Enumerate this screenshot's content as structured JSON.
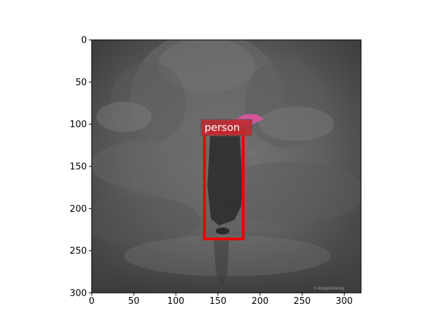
{
  "chart_data": {
    "type": "image-detection",
    "xlim": [
      0,
      320
    ],
    "ylim": [
      300,
      0
    ],
    "x_ticks": [
      0,
      50,
      100,
      150,
      200,
      250,
      300
    ],
    "y_ticks": [
      0,
      50,
      100,
      150,
      200,
      250,
      300
    ],
    "x_tick_labels": [
      "0",
      "50",
      "100",
      "150",
      "200",
      "250",
      "300"
    ],
    "y_tick_labels": [
      "0",
      "50",
      "100",
      "150",
      "200",
      "250",
      "300"
    ],
    "grid": false,
    "detections": [
      {
        "label": "person",
        "box": {
          "x_min": 134,
          "y_min": 109,
          "x_max": 180,
          "y_max": 236
        },
        "box_color": "#ee0000",
        "label_bg_color": "#c0282d",
        "label_text_color": "#ffffff"
      }
    ],
    "image": {
      "description_tag": "foggy-grayscale-photo",
      "watermark": "h.koppdelaney",
      "umbrella_color": "#d9559e"
    }
  }
}
